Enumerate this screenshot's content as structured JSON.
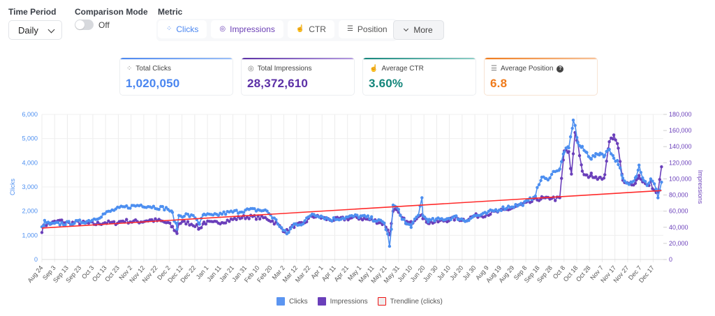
{
  "controls": {
    "time_period": {
      "label": "Time Period",
      "value": "Daily"
    },
    "comparison_mode": {
      "label": "Comparison Mode",
      "state": "Off",
      "enabled": false
    },
    "metric": {
      "label": "Metric",
      "buttons": [
        {
          "label": "Clicks",
          "icon": "cursor-click-icon",
          "active": true
        },
        {
          "label": "Impressions",
          "icon": "eye-icon",
          "active": true
        },
        {
          "label": "CTR",
          "icon": "pointer-hand-icon",
          "active": false
        },
        {
          "label": "Position",
          "icon": "numbered-list-icon",
          "active": false
        }
      ],
      "more_label": "More"
    }
  },
  "cards": [
    {
      "title": "Total Clicks",
      "icon": "cursor-click-icon",
      "value": "1,020,050",
      "color": "#4a86f0",
      "bar": "#6ea2f5"
    },
    {
      "title": "Total Impressions",
      "icon": "eye-icon",
      "value": "28,372,610",
      "color": "#5b2fa6",
      "bar": "#6b3fb5"
    },
    {
      "title": "Average CTR",
      "icon": "pointer-hand-icon",
      "value": "3.60%",
      "color": "#12857a",
      "bar": "#1f8f84"
    },
    {
      "title": "Average Position",
      "icon": "numbered-list-icon",
      "value": "6.8",
      "color": "#ef7a1a",
      "bar": "#f08a2e",
      "help_icon": "question-circle-icon"
    }
  ],
  "chart_data": {
    "type": "line",
    "title": "",
    "xlabel": "",
    "ylabel": "Clicks",
    "y2label": "Impressions",
    "ylim": [
      0,
      6000
    ],
    "y2lim": [
      0,
      180000
    ],
    "yticks": [
      "0",
      "1,000",
      "2,000",
      "3,000",
      "4,000",
      "5,000",
      "6,000"
    ],
    "y2ticks": [
      "0",
      "20,000",
      "40,000",
      "60,000",
      "80,000",
      "100,000",
      "120,000",
      "140,000",
      "160,000",
      "180,000"
    ],
    "x_range_days": 488,
    "x_tick_every_days": 10,
    "x_tick_labels": [
      "Aug 24",
      "Sep 3",
      "Sep 13",
      "Sep 23",
      "Oct 3",
      "Oct 13",
      "Oct 23",
      "Nov 2",
      "Nov 12",
      "Nov 22",
      "Dec 2",
      "Dec 12",
      "Dec 22",
      "Jan 1",
      "Jan 11",
      "Jan 21",
      "Jan 31",
      "Feb 10",
      "Feb 20",
      "Mar 2",
      "Mar 12",
      "Mar 22",
      "Apr 1",
      "Apr 11",
      "Apr 21",
      "May 1",
      "May 11",
      "May 21",
      "May 31",
      "Jun 10",
      "Jun 20",
      "Jun 30",
      "Jul 10",
      "Jul 20",
      "Jul 30",
      "Aug 9",
      "Aug 19",
      "Aug 29",
      "Sep 8",
      "Sep 18",
      "Sep 28",
      "Oct 8",
      "Oct 18",
      "Oct 28",
      "Nov 7",
      "Nov 17",
      "Nov 27",
      "Dec 7",
      "Dec 17"
    ],
    "grid": true,
    "legend": "bottom-center",
    "series": [
      {
        "name": "Clicks",
        "axis": "left",
        "color": "#4d8ff0",
        "keypoints": [
          [
            0,
            1300
          ],
          [
            3,
            1550
          ],
          [
            10,
            1450
          ],
          [
            20,
            1480
          ],
          [
            30,
            1500
          ],
          [
            40,
            1550
          ],
          [
            50,
            1580
          ],
          [
            60,
            1700
          ],
          [
            70,
            1900
          ],
          [
            80,
            2050
          ],
          [
            90,
            2150
          ],
          [
            100,
            2200
          ],
          [
            110,
            2250
          ],
          [
            120,
            2200
          ],
          [
            130,
            2150
          ],
          [
            140,
            2100
          ],
          [
            145,
            1900
          ],
          [
            150,
            1300
          ],
          [
            152,
            1800
          ],
          [
            160,
            1850
          ],
          [
            170,
            1750
          ],
          [
            175,
            1500
          ],
          [
            180,
            1850
          ],
          [
            190,
            1800
          ],
          [
            200,
            1900
          ],
          [
            210,
            1950
          ],
          [
            220,
            2000
          ],
          [
            230,
            2050
          ],
          [
            240,
            2050
          ],
          [
            250,
            2000
          ],
          [
            260,
            1600
          ],
          [
            268,
            1200
          ],
          [
            272,
            1050
          ],
          [
            280,
            1450
          ],
          [
            290,
            1500
          ],
          [
            300,
            1900
          ],
          [
            310,
            1800
          ],
          [
            320,
            1650
          ],
          [
            330,
            1700
          ],
          [
            340,
            1750
          ],
          [
            350,
            1800
          ],
          [
            360,
            1750
          ],
          [
            370,
            1650
          ],
          [
            380,
            1500
          ],
          [
            384,
            1050
          ],
          [
            386,
            500
          ],
          [
            388,
            1300
          ],
          [
            390,
            2200
          ],
          [
            394,
            2150
          ],
          [
            398,
            1850
          ],
          [
            405,
            1450
          ],
          [
            410,
            1400
          ],
          [
            418,
            1800
          ],
          [
            422,
            2600
          ],
          [
            423,
            1800
          ],
          [
            430,
            1600
          ],
          [
            440,
            1650
          ],
          [
            450,
            1700
          ],
          [
            460,
            1750
          ],
          [
            470,
            1600
          ],
          [
            480,
            1800
          ],
          [
            490,
            1850
          ],
          [
            500,
            2000
          ],
          [
            510,
            2100
          ],
          [
            520,
            2200
          ],
          [
            530,
            2250
          ],
          [
            540,
            2400
          ],
          [
            548,
            2700
          ],
          [
            555,
            3400
          ],
          [
            560,
            3300
          ],
          [
            566,
            3500
          ],
          [
            570,
            3700
          ],
          [
            575,
            3700
          ],
          [
            580,
            4500
          ],
          [
            585,
            4600
          ],
          [
            590,
            5700
          ],
          [
            592,
            5600
          ],
          [
            595,
            4800
          ],
          [
            600,
            4600
          ],
          [
            605,
            4400
          ],
          [
            610,
            4200
          ],
          [
            615,
            4300
          ],
          [
            620,
            4400
          ],
          [
            625,
            4300
          ],
          [
            630,
            4600
          ],
          [
            635,
            4200
          ],
          [
            640,
            4000
          ],
          [
            645,
            3300
          ],
          [
            650,
            3100
          ],
          [
            655,
            3200
          ],
          [
            660,
            3500
          ],
          [
            663,
            3900
          ],
          [
            668,
            3300
          ],
          [
            672,
            3100
          ],
          [
            676,
            3300
          ],
          [
            680,
            3100
          ],
          [
            684,
            2600
          ],
          [
            688,
            3200
          ]
        ]
      },
      {
        "name": "Impressions",
        "axis": "right",
        "color": "#6a3fba",
        "keypoints": [
          [
            0,
            36000
          ],
          [
            3,
            43000
          ],
          [
            10,
            45000
          ],
          [
            20,
            48000
          ],
          [
            30,
            45000
          ],
          [
            40,
            46000
          ],
          [
            50,
            45000
          ],
          [
            60,
            44000
          ],
          [
            70,
            46000
          ],
          [
            80,
            45000
          ],
          [
            90,
            48000
          ],
          [
            100,
            47000
          ],
          [
            110,
            47000
          ],
          [
            120,
            49000
          ],
          [
            130,
            48000
          ],
          [
            140,
            45000
          ],
          [
            145,
            40000
          ],
          [
            150,
            33000
          ],
          [
            152,
            45000
          ],
          [
            160,
            46000
          ],
          [
            170,
            43000
          ],
          [
            175,
            38000
          ],
          [
            180,
            46000
          ],
          [
            190,
            45000
          ],
          [
            200,
            47000
          ],
          [
            210,
            49000
          ],
          [
            220,
            52000
          ],
          [
            230,
            53000
          ],
          [
            240,
            52000
          ],
          [
            250,
            51000
          ],
          [
            260,
            45000
          ],
          [
            268,
            37000
          ],
          [
            272,
            35000
          ],
          [
            280,
            42000
          ],
          [
            290,
            44000
          ],
          [
            300,
            54000
          ],
          [
            310,
            52000
          ],
          [
            320,
            49000
          ],
          [
            330,
            50000
          ],
          [
            340,
            51000
          ],
          [
            350,
            52000
          ],
          [
            360,
            50000
          ],
          [
            370,
            48000
          ],
          [
            380,
            44000
          ],
          [
            384,
            38000
          ],
          [
            386,
            30000
          ],
          [
            388,
            45000
          ],
          [
            390,
            62000
          ],
          [
            394,
            60000
          ],
          [
            398,
            53000
          ],
          [
            405,
            46000
          ],
          [
            410,
            45000
          ],
          [
            418,
            55000
          ],
          [
            422,
            58000
          ],
          [
            423,
            50000
          ],
          [
            430,
            46000
          ],
          [
            440,
            47000
          ],
          [
            450,
            49000
          ],
          [
            460,
            51000
          ],
          [
            470,
            49000
          ],
          [
            480,
            54000
          ],
          [
            490,
            55000
          ],
          [
            500,
            58000
          ],
          [
            510,
            60000
          ],
          [
            520,
            63000
          ],
          [
            530,
            67000
          ],
          [
            540,
            70000
          ],
          [
            548,
            74000
          ],
          [
            555,
            76000
          ],
          [
            560,
            75000
          ],
          [
            566,
            77000
          ],
          [
            570,
            75000
          ],
          [
            575,
            76000
          ],
          [
            580,
            135000
          ],
          [
            585,
            132000
          ],
          [
            588,
            105000
          ],
          [
            592,
            158000
          ],
          [
            595,
            145000
          ],
          [
            600,
            108000
          ],
          [
            605,
            103000
          ],
          [
            610,
            105000
          ],
          [
            615,
            103000
          ],
          [
            620,
            100000
          ],
          [
            625,
            103000
          ],
          [
            630,
            148000
          ],
          [
            635,
            153000
          ],
          [
            640,
            140000
          ],
          [
            645,
            96000
          ],
          [
            650,
            94000
          ],
          [
            655,
            92000
          ],
          [
            660,
            98000
          ],
          [
            663,
            104000
          ],
          [
            668,
            96000
          ],
          [
            672,
            91000
          ],
          [
            676,
            95000
          ],
          [
            680,
            85000
          ],
          [
            684,
            82000
          ],
          [
            688,
            115000
          ]
        ]
      },
      {
        "name": "Trendline (clicks)",
        "axis": "left",
        "color": "#ff2a2a",
        "type": "trend",
        "points": [
          [
            0,
            1300
          ],
          [
            688,
            2850
          ]
        ]
      }
    ]
  },
  "legend": [
    {
      "label": "Clicks",
      "fill": "#5b95f1",
      "stroke": "#5b95f1"
    },
    {
      "label": "Impressions",
      "fill": "#6a3fba",
      "stroke": "#6a3fba"
    },
    {
      "label": "Trendline (clicks)",
      "fill": "#eeeeee",
      "stroke": "#ee1111"
    }
  ]
}
